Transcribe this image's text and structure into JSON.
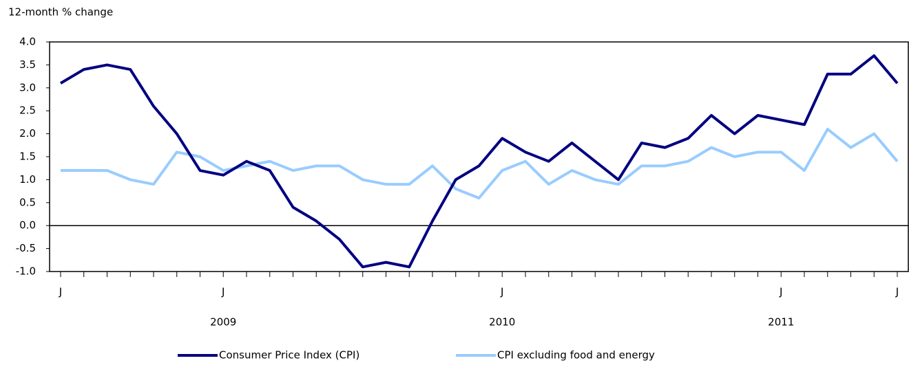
{
  "chart_data": {
    "type": "line",
    "y_axis_label": "12-month % change",
    "categories": [
      "J",
      null,
      null,
      null,
      null,
      null,
      null,
      "J",
      null,
      null,
      null,
      null,
      null,
      null,
      null,
      null,
      null,
      null,
      null,
      "J",
      null,
      null,
      null,
      null,
      null,
      null,
      null,
      null,
      null,
      null,
      null,
      "J",
      null,
      null,
      null,
      null,
      "J"
    ],
    "x_groups": [
      {
        "label": "2009",
        "at": 7
      },
      {
        "label": "2010",
        "at": 19
      },
      {
        "label": "2011",
        "at": 31
      }
    ],
    "series": [
      {
        "name": "Consumer Price Index (CPI)",
        "color": "#000080",
        "values": [
          3.1,
          3.4,
          3.5,
          3.4,
          2.6,
          2.0,
          1.2,
          1.1,
          1.4,
          1.2,
          0.4,
          0.1,
          -0.3,
          -0.9,
          -0.8,
          -0.9,
          0.1,
          1.0,
          1.3,
          1.9,
          1.6,
          1.4,
          1.8,
          1.4,
          1.0,
          1.8,
          1.7,
          1.9,
          2.4,
          2.0,
          2.4,
          2.3,
          2.2,
          3.3,
          3.3,
          3.7,
          3.1
        ]
      },
      {
        "name": "CPI excluding food and energy",
        "color": "#99ccff",
        "values": [
          1.2,
          1.2,
          1.2,
          1.0,
          0.9,
          1.6,
          1.5,
          1.2,
          1.3,
          1.4,
          1.2,
          1.3,
          1.3,
          1.0,
          0.9,
          0.9,
          1.3,
          0.8,
          0.6,
          1.2,
          1.4,
          0.9,
          1.2,
          1.0,
          0.9,
          1.3,
          1.3,
          1.4,
          1.7,
          1.5,
          1.6,
          1.6,
          1.2,
          2.1,
          1.7,
          2.0,
          1.4
        ]
      }
    ],
    "ylim": [
      -1.0,
      4.0
    ],
    "yticks": [
      {
        "value": -1.0,
        "label": "-1.0"
      },
      {
        "value": -0.5,
        "label": "-0.5"
      },
      {
        "value": 0,
        "label": "0.0"
      },
      {
        "value": 0.5,
        "label": "0.5"
      },
      {
        "value": 1.0,
        "label": "1.0"
      },
      {
        "value": 1.5,
        "label": "1.5"
      },
      {
        "value": 2.0,
        "label": "2.0"
      },
      {
        "value": 2.5,
        "label": "2.5"
      },
      {
        "value": 3.0,
        "label": "3.0"
      },
      {
        "value": 3.5,
        "label": "3.5"
      },
      {
        "value": 4.0,
        "label": "4.0"
      }
    ],
    "zero_line": true,
    "grid": false
  }
}
